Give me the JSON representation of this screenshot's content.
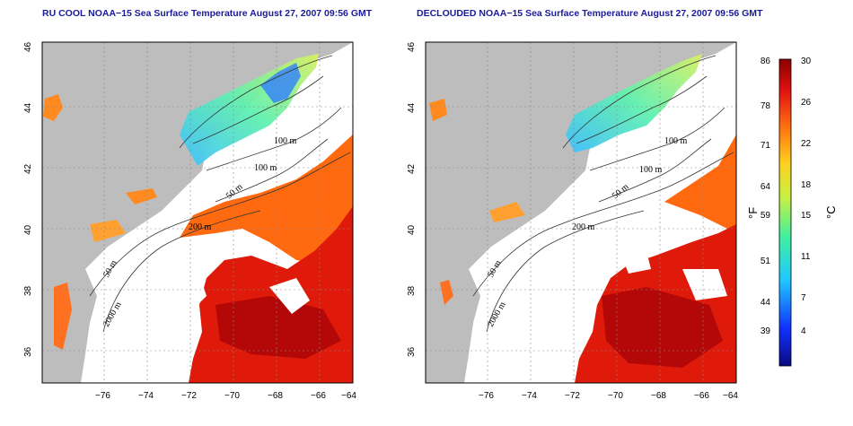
{
  "panels": [
    {
      "title": "RU COOL NOAA−15 Sea Surface Temperature August 27, 2007 09:56 GMT",
      "contours": [
        "100 m",
        "100 m",
        "50 m",
        "200 m",
        "50 m",
        "2000 m"
      ]
    },
    {
      "title": "DECLOUDED NOAA−15 Sea Surface Temperature August 27, 2007 09:56 GMT",
      "contours": [
        "100 m",
        "100 m",
        "50 m",
        "200 m",
        "50 m",
        "2000 m"
      ]
    }
  ],
  "axes": {
    "x_ticks": [
      "−76",
      "−74",
      "−72",
      "−70",
      "−68",
      "−66",
      "−64"
    ],
    "y_ticks": [
      "36",
      "38",
      "40",
      "42",
      "44",
      "46"
    ]
  },
  "colorbar": {
    "fahrenheit_ticks": [
      "86",
      "78",
      "71",
      "64",
      "59",
      "51",
      "44",
      "39"
    ],
    "celsius_ticks": [
      "30",
      "26",
      "22",
      "18",
      "15",
      "11",
      "7",
      "4"
    ],
    "fahrenheit_unit": "°F",
    "celsius_unit": "°C"
  },
  "colors": {
    "land": "#bdbdbd",
    "cloud": "#ffffff",
    "title": "#1a1a9a"
  }
}
